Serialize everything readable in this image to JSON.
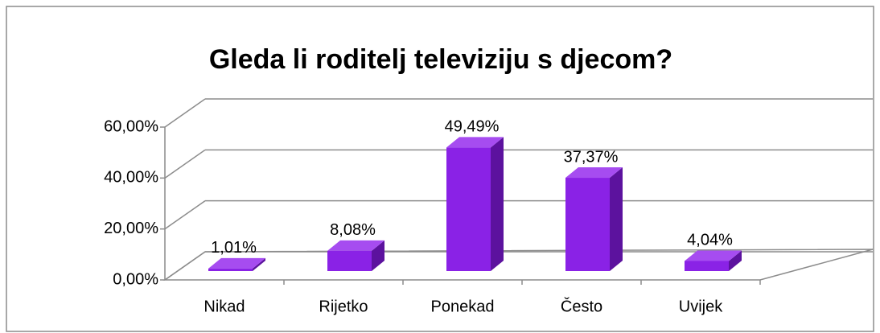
{
  "chart_data": {
    "type": "bar3d",
    "title": "Gleda li roditelj televiziju s djecom?",
    "categories": [
      "Nikad",
      "Rijetko",
      "Ponekad",
      "Često",
      "Uvijek"
    ],
    "values": [
      1.01,
      8.08,
      49.49,
      37.37,
      4.04
    ],
    "value_labels": [
      "1,01%",
      "8,08%",
      "49,49%",
      "37,37%",
      "4,04%"
    ],
    "color": "#8a22e6",
    "ylim": [
      0,
      60
    ],
    "yticks": [
      {
        "value": 0,
        "label": "0,00%"
      },
      {
        "value": 20,
        "label": "20,00%"
      },
      {
        "value": 40,
        "label": "40,00%"
      },
      {
        "value": 60,
        "label": "60,00%"
      }
    ],
    "grid": true
  }
}
